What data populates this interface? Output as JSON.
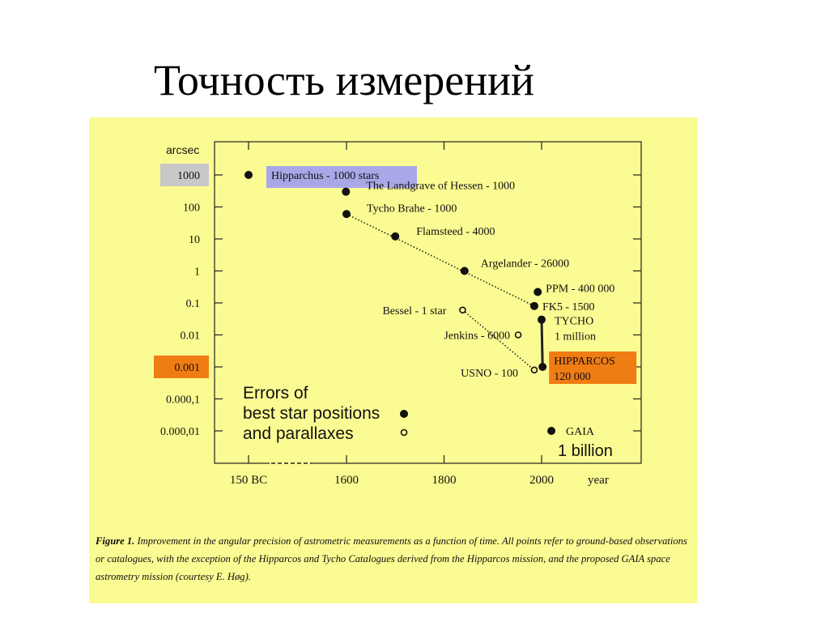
{
  "slide": {
    "title": "Точность измерений"
  },
  "chart_data": {
    "type": "scatter",
    "y_scale": "log",
    "ylabel": "arcsec",
    "xlabel": "year",
    "y_ticks": [
      {
        "value": 1000,
        "label": "1000",
        "highlight": "#c8c8c8"
      },
      {
        "value": 100,
        "label": "100"
      },
      {
        "value": 10,
        "label": "10"
      },
      {
        "value": 1,
        "label": "1"
      },
      {
        "value": 0.1,
        "label": "0.1"
      },
      {
        "value": 0.01,
        "label": "0.01"
      },
      {
        "value": 0.001,
        "label": "0.001",
        "highlight": "#f07c14"
      },
      {
        "value": 0.0001,
        "label": "0.000,1"
      },
      {
        "value": 1e-05,
        "label": "0.000,01"
      }
    ],
    "x_ticks": [
      {
        "value": -150,
        "label": "150 BC"
      },
      {
        "value": 1600,
        "label": "1600"
      },
      {
        "value": 1800,
        "label": "1800"
      },
      {
        "value": 2000,
        "label": "2000"
      }
    ],
    "points": [
      {
        "label": "Hipparchus - 1000 stars",
        "x": -150,
        "y": 1000,
        "marker": "filled",
        "highlight": "#a8a8e8"
      },
      {
        "label": "The Landgrave of Hessen - 1000",
        "x": 1590,
        "y": 300,
        "marker": "filled"
      },
      {
        "label": "Tycho Brahe - 1000",
        "x": 1600,
        "y": 60,
        "marker": "filled"
      },
      {
        "label": "Flamsteed - 4000",
        "x": 1700,
        "y": 12,
        "marker": "filled"
      },
      {
        "label": "Argelander - 26000",
        "x": 1842,
        "y": 1,
        "marker": "filled"
      },
      {
        "label": "PPM - 400 000",
        "x": 1992,
        "y": 0.22,
        "marker": "filled"
      },
      {
        "label": "FK5 - 1500",
        "x": 1985,
        "y": 0.08,
        "marker": "filled"
      },
      {
        "label": "TYCHO",
        "label2": "1 million",
        "x": 2000,
        "y": 0.03,
        "marker": "filled"
      },
      {
        "label": "HIPPARCOS",
        "label2": "120 000",
        "x": 2002,
        "y": 0.001,
        "marker": "filled",
        "highlight": "#f07c14"
      },
      {
        "label": "Bessel - 1 star",
        "x": 1838,
        "y": 0.06,
        "marker": "open"
      },
      {
        "label": "Jenkins - 6000",
        "x": 1952,
        "y": 0.01,
        "marker": "open"
      },
      {
        "label": "USNO - 100",
        "x": 1985,
        "y": 0.0008,
        "marker": "open"
      },
      {
        "label": "GAIA",
        "label2": "1 billion",
        "x": 2020,
        "y": 1e-05,
        "marker": "filled"
      }
    ],
    "trend_lines": [
      {
        "style": "dotted",
        "from": [
          1600,
          60
        ],
        "to": [
          1985,
          0.08
        ]
      },
      {
        "style": "dotted",
        "from": [
          1838,
          0.06
        ],
        "to": [
          1985,
          0.0008
        ]
      },
      {
        "style": "solid",
        "from": [
          2000,
          0.03
        ],
        "to": [
          2002,
          0.001
        ]
      }
    ],
    "legend": {
      "title_lines": [
        "Errors of",
        "best star positions",
        "and parallaxes"
      ],
      "markers": [
        "filled",
        "open"
      ]
    }
  },
  "caption": {
    "figure_label": "Figure 1.",
    "text": " Improvement in the angular precision of astrometric measurements as a function of time. All points refer to ground-based observations or catalogues, with the exception of the Hipparcos and Tycho Catalogues derived from the Hipparcos mission, and the proposed GAIA space astrometry mission (courtesy E. Høg)."
  }
}
